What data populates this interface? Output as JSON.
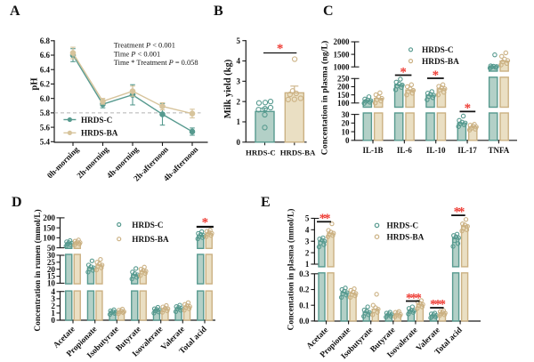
{
  "figure": {
    "groups": [
      "HRDS-C",
      "HRDS-BA"
    ],
    "colors": {
      "hrds_c_line": "#579A8F",
      "hrds_c_fill": "#B3D0C7",
      "hrds_ba_line": "#D7C49C",
      "hrds_ba_stroke": "#CBB183",
      "hrds_ba_fill": "#EADFC3",
      "significance_star": "#EE3B33",
      "reference_dash": "#B3B3B3",
      "axis": "#1A1A1A"
    }
  },
  "chart_data": [
    {
      "letter": "A",
      "type": "line",
      "ylabel": "pH",
      "xlabel": "",
      "ylim": [
        5.4,
        6.8
      ],
      "yticks": [
        5.4,
        5.6,
        5.8,
        6.0,
        6.2,
        6.4,
        6.6,
        6.8
      ],
      "categories": [
        "0h-morning",
        "2h-morning",
        "4h-morning",
        "2h-afternoon",
        "4h-afternoon"
      ],
      "series": [
        {
          "name": "HRDS-C",
          "values": [
            6.6,
            5.92,
            6.05,
            5.78,
            5.54
          ],
          "errors": [
            0.09,
            0.05,
            0.14,
            0.15,
            0.05
          ]
        },
        {
          "name": "HRDS-BA",
          "values": [
            6.63,
            5.96,
            6.1,
            5.89,
            5.79
          ],
          "errors": [
            0.08,
            0.04,
            0.07,
            0.05,
            0.06
          ]
        }
      ],
      "reference_line": 5.8,
      "annotations": [
        "Treatment P < 0.001",
        "Time P < 0.001",
        "Time * Treatment P = 0.058"
      ],
      "legend": [
        "HRDS-C",
        "HRDS-BA"
      ],
      "legend_position": "inside-bottom-left",
      "grid": false
    },
    {
      "letter": "B",
      "type": "bar",
      "ylabel": "Milk yield (kg)",
      "xlabel": "",
      "ylim": [
        0,
        5
      ],
      "yticks": [
        0,
        1,
        2,
        3,
        4,
        5
      ],
      "categories": [
        "HRDS-C",
        "HRDS-BA"
      ],
      "series": [
        {
          "name": "HRDS-C",
          "values": [
            1.51
          ],
          "errors": [
            0.16
          ],
          "points": [
            [
              0.72,
              1.35,
              1.6,
              1.65,
              1.7,
              1.93,
              1.95,
              2.0
            ]
          ]
        },
        {
          "name": "HRDS-BA",
          "values": [
            2.43
          ],
          "errors": [
            0.33
          ],
          "points": [
            [
              2.1,
              2.11,
              2.16,
              2.35,
              2.4,
              2.52,
              4.09
            ]
          ]
        }
      ],
      "significance": [
        {
          "categories": [
            "HRDS-C",
            "HRDS-BA"
          ],
          "label": "*"
        }
      ],
      "grid": false
    },
    {
      "letter": "C",
      "type": "bar",
      "ylabel": "Concentation in plasma (ng/L)",
      "xlabel": "",
      "axis_segments": [
        {
          "range": [
            0,
            30
          ],
          "ticks": [
            0,
            10,
            20,
            30
          ]
        },
        {
          "range": [
            100,
            250
          ],
          "ticks": [
            100,
            150,
            200,
            250
          ]
        },
        {
          "range": [
            1000,
            2000
          ],
          "ticks": [
            1000,
            1500,
            2000
          ]
        }
      ],
      "categories": [
        "IL-1B",
        "IL-6",
        "IL-10",
        "IL-17",
        "TNFA"
      ],
      "series": [
        {
          "name": "HRDS-C",
          "values": [
            115,
            212,
            147,
            20,
            1010
          ],
          "points": [
            [
              98,
              105,
              110,
              114,
              118,
              124,
              138
            ],
            [
              182,
              196,
              204,
              210,
              216,
              228,
              246
            ],
            [
              120,
              133,
              140,
              147,
              153,
              160,
              170
            ],
            [
              16,
              18,
              19,
              20,
              21,
              23,
              28
            ],
            [
              950,
              980,
              1000,
              1012,
              1025,
              1040,
              1480
            ]
          ]
        },
        {
          "name": "HRDS-BA",
          "values": [
            128,
            180,
            187,
            15.5,
            1230
          ],
          "points": [
            [
              100,
              112,
              121,
              128,
              136,
              150,
              162
            ],
            [
              150,
              160,
              170,
              177,
              186,
              200,
              212
            ],
            [
              150,
              166,
              180,
              187,
              193,
              202,
              212
            ],
            [
              12,
              13,
              14,
              15.5,
              16.5,
              17.5,
              18.5
            ],
            [
              1080,
              1140,
              1200,
              1250,
              1310,
              1420,
              1560
            ]
          ]
        }
      ],
      "significance": [
        {
          "categories": [
            "IL-6"
          ],
          "label": "*"
        },
        {
          "categories": [
            "IL-10"
          ],
          "label": "*"
        },
        {
          "categories": [
            "IL-17"
          ],
          "label": "*"
        }
      ],
      "legend": [
        "HRDS-C",
        "HRDS-BA"
      ],
      "legend_position": "inside-top",
      "grid": false
    },
    {
      "letter": "D",
      "type": "bar",
      "ylabel": "Concentration in rumen (mmol/L)",
      "xlabel": "",
      "axis_segments": [
        {
          "range": [
            0,
            4
          ],
          "ticks": [
            0,
            1,
            2,
            3,
            4
          ]
        },
        {
          "range": [
            10,
            30
          ],
          "ticks": [
            10,
            15,
            20,
            25,
            30
          ]
        },
        {
          "range": [
            50,
            200
          ],
          "ticks": [
            50,
            100,
            150,
            200
          ]
        }
      ],
      "categories": [
        "Acetate",
        "Propionate",
        "Isobutyrate",
        "Butyrate",
        "Isovalerate",
        "Valerate",
        "Total acid"
      ],
      "series": [
        {
          "name": "HRDS-C",
          "values": [
            73,
            21,
            1.1,
            16,
            1.4,
            1.65,
            112
          ],
          "points": [
            [
              58,
              64,
              69,
              73,
              76,
              80,
              86
            ],
            [
              18,
              19.2,
              20.2,
              21,
              21.8,
              23,
              26
            ],
            [
              0.8,
              0.95,
              1.05,
              1.1,
              1.2,
              1.3,
              1.45
            ],
            [
              13,
              14.2,
              15.2,
              16,
              16.8,
              18,
              20.5
            ],
            [
              1.0,
              1.15,
              1.3,
              1.4,
              1.5,
              1.6,
              1.8
            ],
            [
              1.2,
              1.4,
              1.55,
              1.65,
              1.78,
              1.9,
              2.1
            ],
            [
              95,
              101,
              106,
              112,
              117,
              122,
              131
            ]
          ]
        },
        {
          "name": "HRDS-BA",
          "values": [
            76,
            23,
            1.2,
            18.5,
            1.6,
            1.9,
            122
          ],
          "points": [
            [
              63,
              69,
              73.5,
              76,
              79,
              83,
              89
            ],
            [
              19.5,
              21,
              22.2,
              23,
              23.8,
              25,
              27
            ],
            [
              0.9,
              1.05,
              1.15,
              1.2,
              1.3,
              1.4,
              1.55
            ],
            [
              15.5,
              17,
              18,
              18.5,
              19.2,
              20,
              21.5
            ],
            [
              1.1,
              1.3,
              1.45,
              1.6,
              1.7,
              1.85,
              2.05
            ],
            [
              1.4,
              1.6,
              1.78,
              1.9,
              2.05,
              2.2,
              2.45
            ],
            [
              106,
              112,
              118,
              122,
              127,
              132,
              138
            ]
          ]
        }
      ],
      "significance": [
        {
          "categories": [
            "Total acid"
          ],
          "label": "*"
        }
      ],
      "legend": [
        "HRDS-C",
        "HRDS-BA"
      ],
      "legend_position": "inside-top",
      "grid": false
    },
    {
      "letter": "E",
      "type": "bar",
      "ylabel": "Concentation in plasma (mmol/L)",
      "xlabel": "",
      "axis_segments": [
        {
          "range": [
            0,
            0.3
          ],
          "ticks": [
            0.0,
            0.1,
            0.2,
            0.3
          ]
        },
        {
          "range": [
            1,
            5
          ],
          "ticks": [
            1,
            2,
            3,
            4,
            5
          ]
        }
      ],
      "categories": [
        "Acetate",
        "Propionate",
        "Isobutyrate",
        "Butyrate",
        "Isovalerate",
        "Valerate",
        "Total acid"
      ],
      "series": [
        {
          "name": "HRDS-C",
          "values": [
            3.0,
            0.18,
            0.055,
            0.04,
            0.065,
            0.035,
            3.3
          ],
          "points": [
            [
              2.5,
              2.7,
              2.85,
              3.0,
              3.1,
              3.2,
              3.3
            ],
            [
              0.15,
              0.165,
              0.175,
              0.18,
              0.19,
              0.2,
              0.21
            ],
            [
              0.03,
              0.04,
              0.05,
              0.055,
              0.062,
              0.07,
              0.09
            ],
            [
              0.025,
              0.03,
              0.036,
              0.04,
              0.045,
              0.05,
              0.056
            ],
            [
              0.045,
              0.055,
              0.06,
              0.065,
              0.07,
              0.08,
              0.09
            ],
            [
              0.02,
              0.026,
              0.03,
              0.035,
              0.04,
              0.045,
              0.05
            ],
            [
              2.55,
              2.8,
              3.05,
              3.3,
              3.4,
              3.5,
              3.62
            ]
          ]
        },
        {
          "name": "HRDS-BA",
          "values": [
            3.7,
            0.175,
            0.075,
            0.042,
            0.105,
            0.05,
            4.35
          ],
          "points": [
            [
              3.4,
              3.5,
              3.6,
              3.7,
              3.8,
              3.95,
              4.52
            ],
            [
              0.15,
              0.16,
              0.168,
              0.175,
              0.185,
              0.195,
              0.205
            ],
            [
              0.04,
              0.055,
              0.065,
              0.075,
              0.085,
              0.1,
              0.17
            ],
            [
              0.026,
              0.032,
              0.038,
              0.042,
              0.05,
              0.055,
              0.06
            ],
            [
              0.08,
              0.09,
              0.1,
              0.105,
              0.112,
              0.12,
              0.13
            ],
            [
              0.035,
              0.04,
              0.046,
              0.05,
              0.056,
              0.06,
              0.066
            ],
            [
              3.9,
              4.0,
              4.12,
              4.3,
              4.42,
              4.52,
              4.9
            ]
          ]
        }
      ],
      "significance": [
        {
          "categories": [
            "Acetate"
          ],
          "label": "**"
        },
        {
          "categories": [
            "Isovalerate"
          ],
          "label": "***"
        },
        {
          "categories": [
            "Valerate"
          ],
          "label": "***"
        },
        {
          "categories": [
            "Total acid"
          ],
          "label": "**"
        }
      ],
      "legend": [
        "HRDS-C",
        "HRDS-BA"
      ],
      "legend_position": "inside-top",
      "grid": false
    }
  ]
}
